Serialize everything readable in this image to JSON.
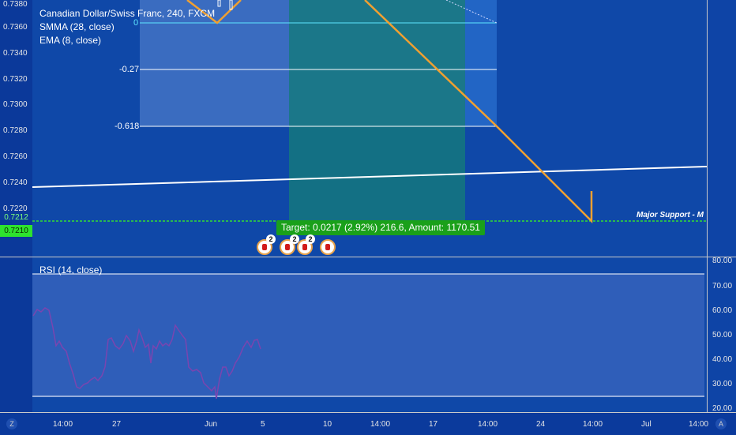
{
  "legend": {
    "symbol": "Canadian Dollar/Swiss Franc, 240, FXCM",
    "smma": "SMMA (28, close)",
    "ema": "EMA (8, close)",
    "rsi": "RSI (14, close)"
  },
  "price_axis": [
    "0.7380",
    "0.7360",
    "0.7340",
    "0.7320",
    "0.7300",
    "0.7280",
    "0.7260",
    "0.7240",
    "0.7220"
  ],
  "price_tag_1": "0.7212",
  "price_tag_2": "0.7210",
  "rsi_axis": [
    "80.00",
    "70.00",
    "60.00",
    "50.00",
    "40.00",
    "30.00",
    "20.00"
  ],
  "time_axis": [
    "14:00",
    "27",
    "Jun",
    "5",
    "10",
    "14:00",
    "17",
    "14:00",
    "24",
    "14:00",
    "Jul",
    "14:00"
  ],
  "fib_levels": [
    "0",
    "-0.27",
    "-0.618"
  ],
  "target_label": "Target: 0.0217 (2.92%) 216.6, Amount: 1170.51",
  "support_label": "Major Support - M",
  "event_badges": [
    "2",
    "2",
    "2"
  ],
  "logo_left": "Z",
  "logo_right": "A",
  "colors": {
    "background": "#0f48a8",
    "projection": "#f0a030",
    "support": "#33dd33",
    "rsi_line": "#7a45b0",
    "target_box": "#1aa01a"
  }
}
